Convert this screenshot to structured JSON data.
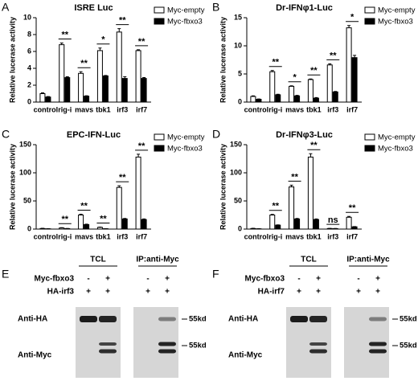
{
  "chart_data": [
    {
      "type": "bar",
      "panel": "A",
      "title": "ISRE Luc",
      "ylabel": "Relative lucerase activity",
      "categories": [
        "control",
        "rig-i",
        "mavs",
        "tbk1",
        "irf3",
        "irf7"
      ],
      "series": [
        {
          "name": "Myc-empty",
          "color": "#ffffff",
          "values": [
            1.0,
            6.8,
            3.4,
            6.1,
            8.3,
            6.1
          ],
          "errors": [
            0.1,
            0.2,
            0.2,
            0.3,
            0.4,
            0.1
          ]
        },
        {
          "name": "Myc-fbxo3",
          "color": "#000000",
          "values": [
            0.6,
            2.9,
            0.7,
            3.1,
            2.8,
            2.8
          ],
          "errors": [
            0.05,
            0.1,
            0.05,
            0.05,
            0.2,
            0.1
          ]
        }
      ],
      "annotations": [
        null,
        "**",
        "**",
        "*",
        "**",
        "**"
      ],
      "ylim": [
        0,
        10
      ],
      "yticks": [
        0,
        2,
        4,
        6,
        8,
        10
      ]
    },
    {
      "type": "bar",
      "panel": "B",
      "title": "Dr-IFNφ1-Luc",
      "ylabel": "Relative lucerase activity",
      "categories": [
        "control",
        "rig-i",
        "mavs",
        "tbk1",
        "irf3",
        "irf7"
      ],
      "series": [
        {
          "name": "Myc-empty",
          "color": "#ffffff",
          "values": [
            1.0,
            5.4,
            2.8,
            4.0,
            6.6,
            13.2
          ],
          "errors": [
            0.1,
            0.2,
            0.1,
            0.1,
            0.2,
            0.4
          ]
        },
        {
          "name": "Myc-fbxo3",
          "color": "#000000",
          "values": [
            0.5,
            1.3,
            1.1,
            0.7,
            1.8,
            7.9
          ],
          "errors": [
            0.05,
            0.1,
            0.1,
            0.1,
            0.1,
            0.4
          ]
        }
      ],
      "annotations": [
        null,
        "**",
        "*",
        "**",
        "**",
        "*"
      ],
      "ylim": [
        0,
        15
      ],
      "yticks": [
        0,
        5,
        10,
        15
      ]
    },
    {
      "type": "bar",
      "panel": "C",
      "title": "EPC-IFN-Luc",
      "ylabel": "Relative lucerase activity",
      "categories": [
        "control",
        "rig-i",
        "mavs",
        "tbk1",
        "irf3",
        "irf7"
      ],
      "series": [
        {
          "name": "Myc-empty",
          "color": "#ffffff",
          "values": [
            1,
            2,
            25,
            3,
            74,
            128
          ],
          "errors": [
            0.5,
            0.5,
            1.5,
            0.5,
            3,
            5
          ]
        },
        {
          "name": "Myc-fbxo3",
          "color": "#000000",
          "values": [
            0.5,
            0.8,
            8,
            0.6,
            18,
            17
          ],
          "errors": [
            0.2,
            0.2,
            0.8,
            0.2,
            1,
            1
          ]
        }
      ],
      "annotations": [
        null,
        "**",
        "**",
        "**",
        "**",
        "**"
      ],
      "ylim": [
        0,
        150
      ],
      "yticks": [
        0,
        50,
        100,
        150
      ]
    },
    {
      "type": "bar",
      "panel": "D",
      "title": "Dr-IFNφ3-Luc",
      "ylabel": "Relative lucerase activity",
      "categories": [
        "control",
        "rig-i",
        "mavs",
        "tbk1",
        "irf3",
        "irf7"
      ],
      "series": [
        {
          "name": "Myc-empty",
          "color": "#ffffff",
          "values": [
            1,
            25,
            75,
            128,
            1,
            21
          ],
          "errors": [
            0.5,
            1,
            3,
            6,
            0.3,
            1.5
          ]
        },
        {
          "name": "Myc-fbxo3",
          "color": "#000000",
          "values": [
            0.5,
            7,
            18,
            17,
            0.8,
            4
          ],
          "errors": [
            0.2,
            0.5,
            1,
            1,
            0.2,
            0.5
          ]
        }
      ],
      "annotations": [
        null,
        "**",
        "**",
        "**",
        "ns",
        "**"
      ],
      "ylim": [
        0,
        150
      ],
      "yticks": [
        0,
        50,
        100,
        150
      ]
    }
  ],
  "blots": [
    {
      "panel": "E",
      "groups": [
        "TCL",
        "IP:anti-Myc"
      ],
      "treatments": [
        {
          "label": "Myc-fbxo3",
          "signs": [
            "-",
            "+",
            "-",
            "+"
          ]
        },
        {
          "label": "HA-irf3",
          "signs": [
            "+",
            "+",
            "+",
            "+"
          ]
        }
      ],
      "rows": [
        {
          "label": "Anti-HA",
          "marker": "55kd"
        },
        {
          "label": "Anti-Myc",
          "marker": "55kd"
        }
      ]
    },
    {
      "panel": "F",
      "groups": [
        "TCL",
        "IP:anti-Myc"
      ],
      "treatments": [
        {
          "label": "Myc-fbxo3",
          "signs": [
            "-",
            "+",
            "-",
            "+"
          ]
        },
        {
          "label": "HA-irf7",
          "signs": [
            "+",
            "+",
            "+",
            "+"
          ]
        }
      ],
      "rows": [
        {
          "label": "Anti-HA",
          "marker": "55kd"
        },
        {
          "label": "Anti-Myc",
          "marker": "55kd"
        }
      ]
    }
  ]
}
